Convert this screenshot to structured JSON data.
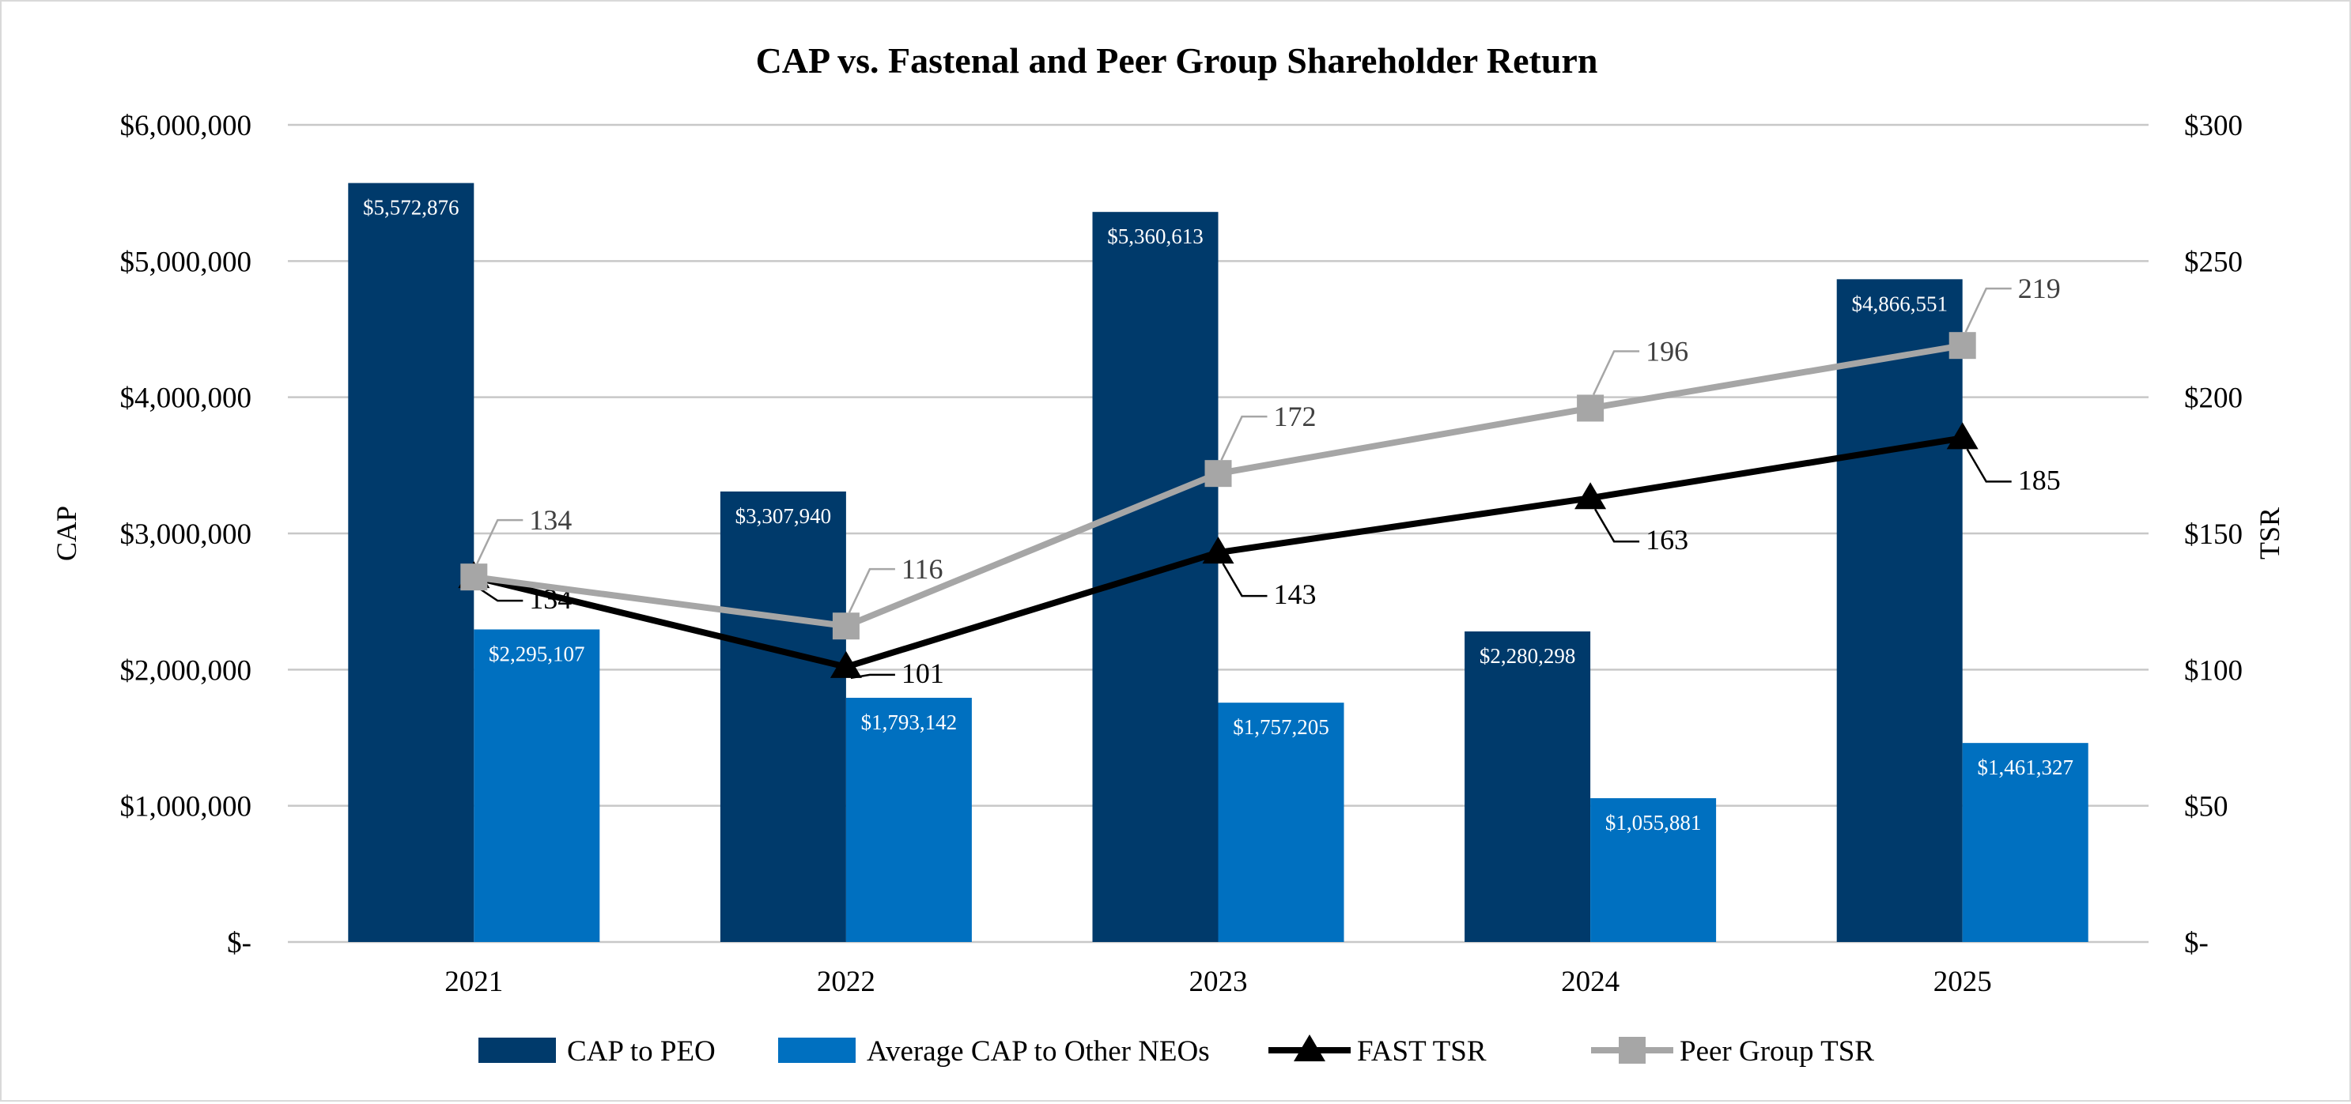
{
  "chart_data": {
    "type": "bar+line",
    "title": "CAP vs. Fastenal and Peer Group Shareholder Return",
    "xlabel": "",
    "ylabel": "CAP",
    "y2label": "TSR",
    "categories": [
      "2021",
      "2022",
      "2023",
      "2024",
      "2025"
    ],
    "ylim": [
      0,
      6000000
    ],
    "y2lim": [
      0,
      300
    ],
    "yticks": [
      "$-",
      "$1,000,000",
      "$2,000,000",
      "$3,000,000",
      "$4,000,000",
      "$5,000,000",
      "$6,000,000"
    ],
    "y2ticks": [
      "$-",
      "$50",
      "$100",
      "$150",
      "$200",
      "$250",
      "$300"
    ],
    "grid": true,
    "legend_position": "bottom",
    "bar_series": [
      {
        "name": "CAP to PEO",
        "color": "#003a6b",
        "values": [
          5572876,
          3307940,
          5360613,
          2280298,
          4866551
        ],
        "labels": [
          "$5,572,876",
          "$3,307,940",
          "$5,360,613",
          "$2,280,298",
          "$4,866,551"
        ]
      },
      {
        "name": "Average CAP to Other NEOs",
        "color": "#0070c0",
        "values": [
          2295107,
          1793142,
          1757205,
          1055881,
          1461327
        ],
        "labels": [
          "$2,295,107",
          "$1,793,142",
          "$1,757,205",
          "$1,055,881",
          "$1,461,327"
        ]
      }
    ],
    "line_series": [
      {
        "name": "FAST TSR",
        "color": "#000000",
        "marker": "triangle",
        "axis": "right",
        "values": [
          134,
          101,
          143,
          163,
          185
        ],
        "labels": [
          "134",
          "101",
          "143",
          "163",
          "185"
        ]
      },
      {
        "name": "Peer Group TSR",
        "color": "#a6a6a6",
        "marker": "square",
        "axis": "right",
        "values": [
          134,
          116,
          172,
          196,
          219
        ],
        "labels": [
          "134",
          "116",
          "172",
          "196",
          "219"
        ]
      }
    ]
  }
}
